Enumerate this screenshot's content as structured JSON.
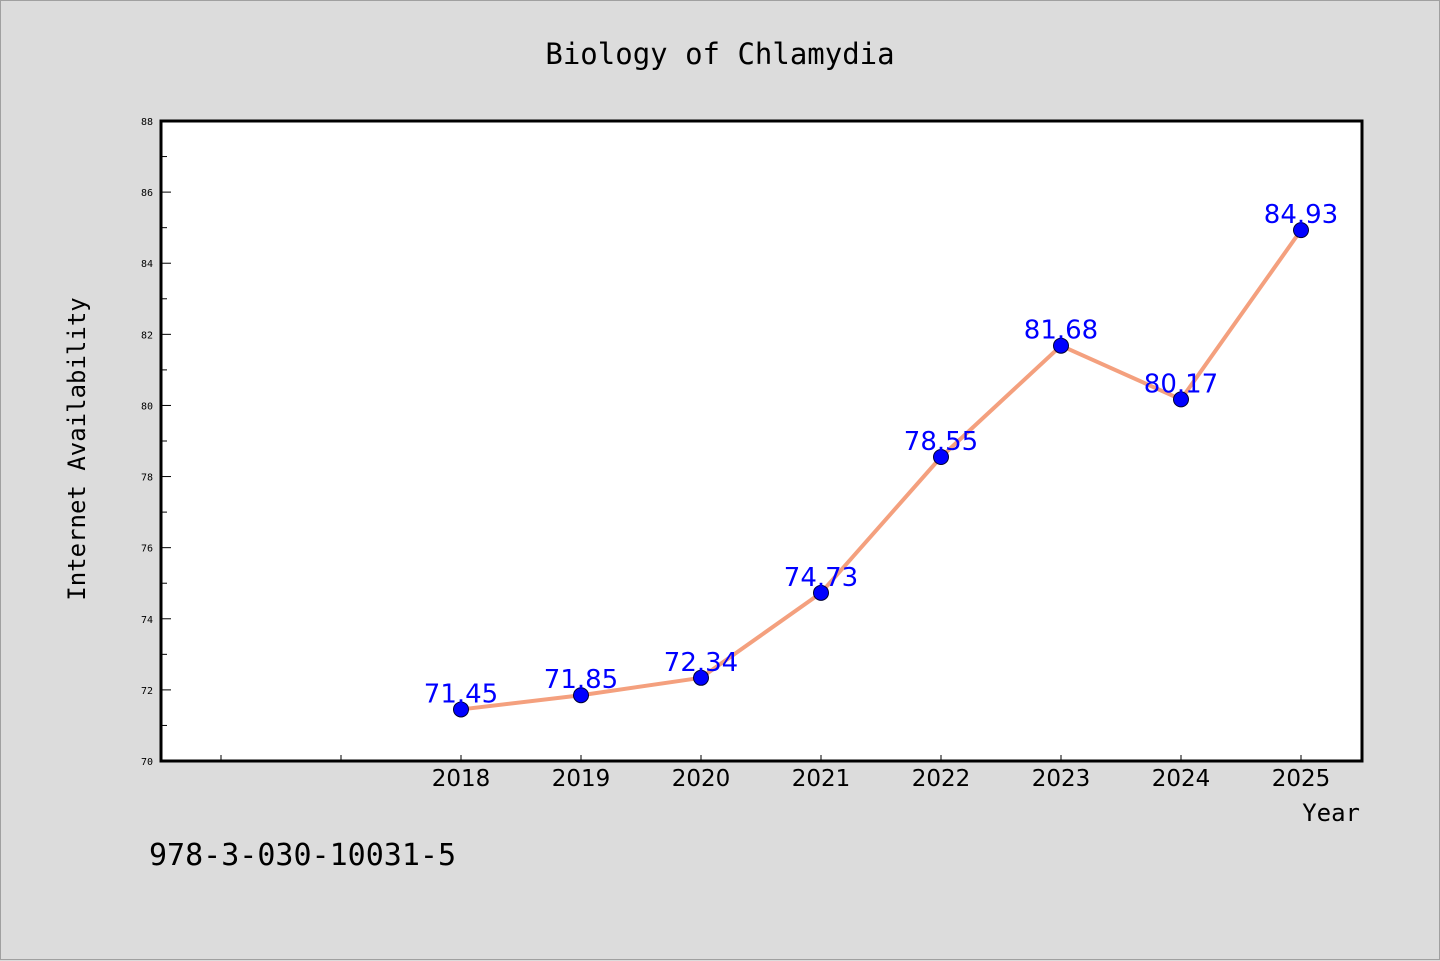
{
  "chart_data": {
    "type": "line",
    "title": "Biology of Chlamydia",
    "xlabel": "Year",
    "ylabel": "Internet Availability",
    "x": [
      "2018",
      "2019",
      "2020",
      "2021",
      "2022",
      "2023",
      "2024",
      "2025"
    ],
    "series": [
      {
        "values": [
          71.45,
          71.85,
          72.34,
          74.73,
          78.55,
          81.68,
          80.17,
          84.93
        ]
      }
    ],
    "data_labels": [
      "71.45",
      "71.85",
      "72.34",
      "74.73",
      "78.55",
      "81.68",
      "80.17",
      "84.93"
    ],
    "ylim": [
      70,
      88
    ],
    "yticks": [
      "70",
      "72",
      "74",
      "76",
      "78",
      "80",
      "82",
      "84",
      "86",
      "88"
    ],
    "grid": false,
    "line_color": "#f4a07e",
    "marker_color": "#0000ff",
    "label_color": "#0000ff"
  },
  "footer": {
    "isbn": "978-3-030-10031-5"
  }
}
